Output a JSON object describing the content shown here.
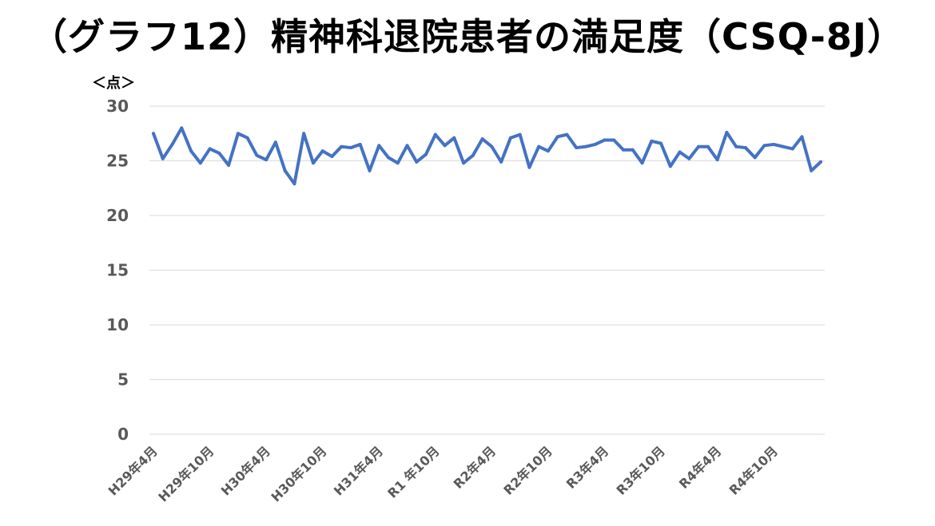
{
  "chart_data": {
    "type": "line",
    "title": "（グラフ12）精神科退院患者の満足度（CSQ-8J）",
    "ylabel": "＜点＞",
    "ylim": [
      0,
      30
    ],
    "yticks": [
      0,
      5,
      10,
      15,
      20,
      25,
      30
    ],
    "grid": true,
    "color": "#4472C4",
    "xtick_labels": [
      "H29年4月",
      "H29年10月",
      "H30年4月",
      "H30年10月",
      "H31年4月",
      "R1 年10月",
      "R2年4月",
      "R2年10月",
      "R3年4月",
      "R3年10月",
      "R4年4月",
      "R4年10月"
    ],
    "xtick_indices": [
      0,
      6,
      12,
      18,
      24,
      30,
      36,
      42,
      48,
      54,
      60,
      66
    ],
    "series": [
      {
        "values": [
          27.5,
          25.2,
          26.5,
          28.0,
          25.9,
          24.8,
          26.1,
          25.7,
          24.6,
          27.5,
          27.1,
          25.5,
          25.1,
          26.7,
          24.1,
          22.9,
          27.5,
          24.8,
          25.9,
          25.4,
          26.3,
          26.2,
          26.5,
          24.1,
          26.4,
          25.3,
          24.8,
          26.4,
          24.9,
          25.6,
          27.4,
          26.4,
          27.1,
          24.8,
          25.5,
          27.0,
          26.3,
          24.9,
          27.1,
          27.4,
          24.4,
          26.3,
          25.9,
          27.2,
          27.4,
          26.2,
          26.3,
          26.5,
          26.9,
          26.9,
          26.0,
          26.0,
          24.8,
          26.8,
          26.6,
          24.5,
          25.8,
          25.2,
          26.3,
          26.3,
          25.1,
          27.6,
          26.3,
          26.2,
          25.3,
          26.4,
          26.5,
          26.3,
          26.1,
          27.2,
          24.1,
          24.9
        ]
      }
    ]
  }
}
